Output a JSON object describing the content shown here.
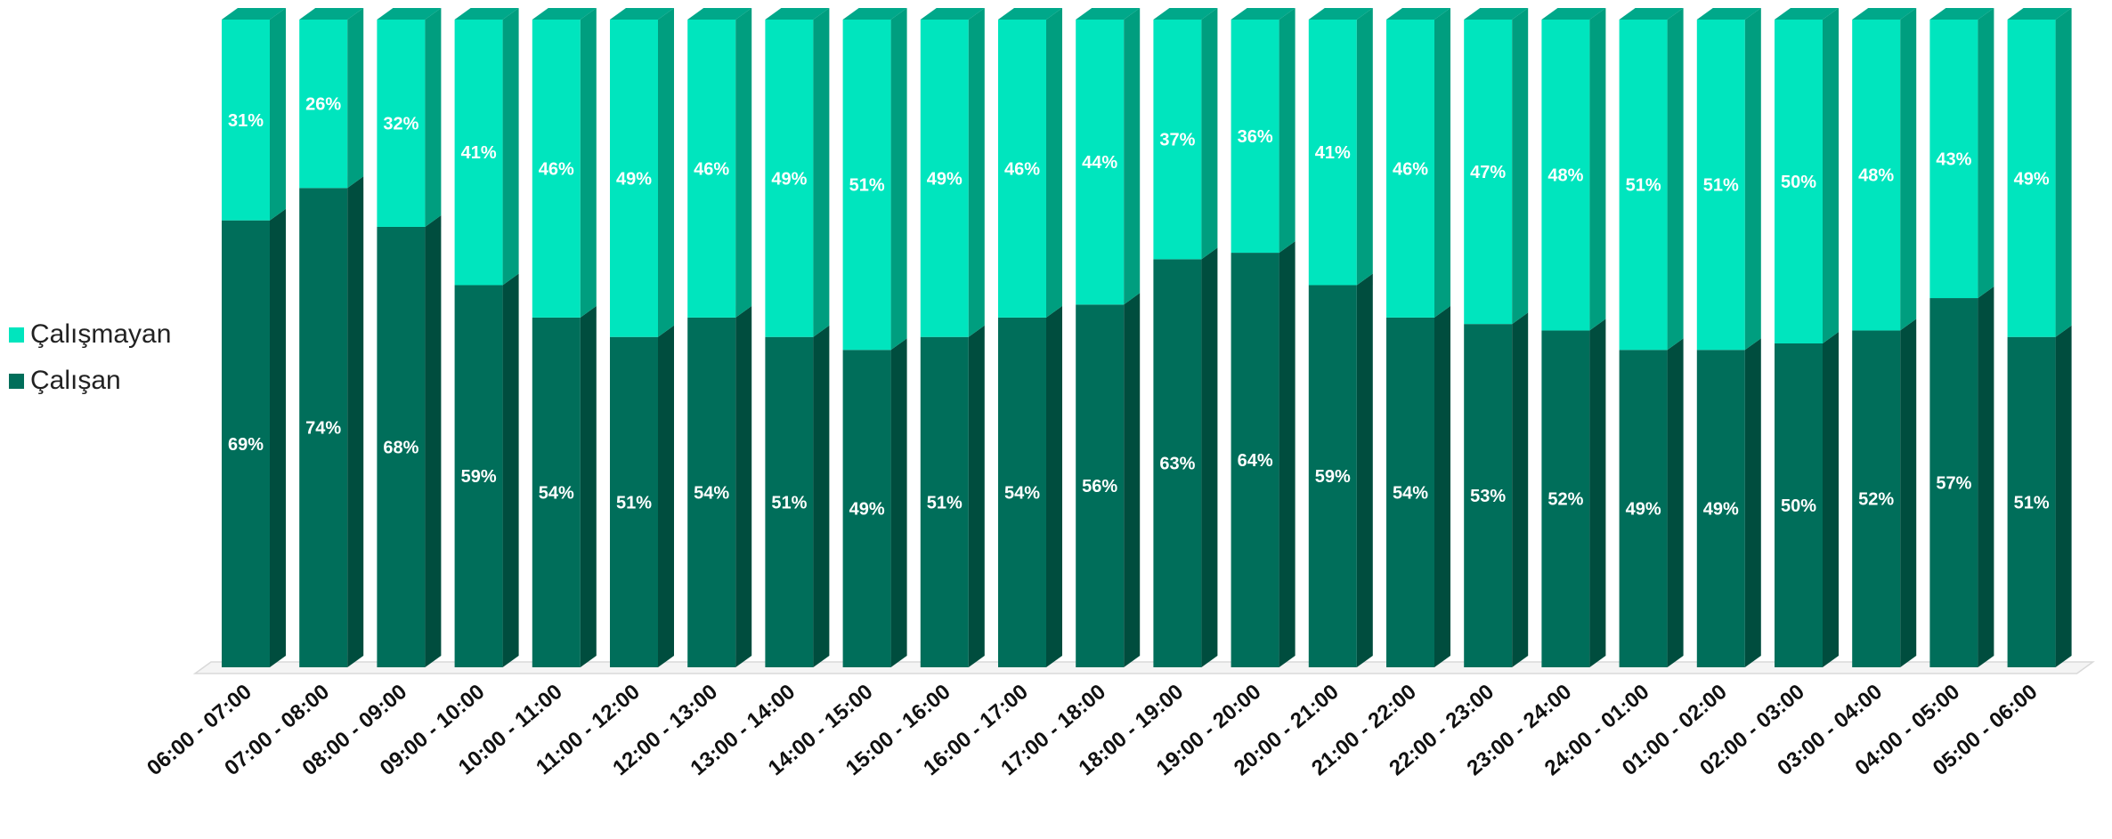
{
  "chart_data": {
    "type": "bar",
    "stacked": true,
    "percent": true,
    "three_d": true,
    "title": "",
    "xlabel": "",
    "ylabel": "",
    "ylim": [
      0,
      100
    ],
    "grid": false,
    "legend_position": "left",
    "categories": [
      "06:00 - 07:00",
      "07:00 - 08:00",
      "08:00 - 09:00",
      "09:00 - 10:00",
      "10:00 - 11:00",
      "11:00 - 12:00",
      "12:00 - 13:00",
      "13:00 - 14:00",
      "14:00 - 15:00",
      "15:00 - 16:00",
      "16:00 - 17:00",
      "17:00 - 18:00",
      "18:00 - 19:00",
      "19:00 - 20:00",
      "20:00 - 21:00",
      "21:00 - 22:00",
      "22:00 - 23:00",
      "23:00 - 24:00",
      "24:00 - 01:00",
      "01:00 - 02:00",
      "02:00 - 03:00",
      "03:00 - 04:00",
      "04:00 - 05:00",
      "05:00 - 06:00"
    ],
    "series": [
      {
        "name": "Çalışan",
        "color": "#006e5a",
        "side_color": "#004d3e",
        "top_color": "#008a70",
        "values": [
          69,
          74,
          68,
          59,
          54,
          51,
          54,
          51,
          49,
          51,
          54,
          56,
          63,
          64,
          59,
          54,
          53,
          52,
          49,
          49,
          50,
          52,
          57,
          51
        ],
        "labels": [
          "69%",
          "74%",
          "68%",
          "59%",
          "54%",
          "51%",
          "54%",
          "51%",
          "49%",
          "51%",
          "54%",
          "56%",
          "63%",
          "64%",
          "59%",
          "54%",
          "53%",
          "52%",
          "49%",
          "49%",
          "50%",
          "52%",
          "57%",
          "51%"
        ]
      },
      {
        "name": "Çalışmayan",
        "color": "#00e5be",
        "side_color": "#009e7f",
        "top_color": "#00a88a",
        "values": [
          31,
          26,
          32,
          41,
          46,
          49,
          46,
          49,
          51,
          49,
          46,
          44,
          37,
          36,
          41,
          46,
          47,
          48,
          51,
          51,
          50,
          48,
          43,
          49
        ],
        "labels": [
          "31%",
          "26%",
          "32%",
          "41%",
          "46%",
          "49%",
          "46%",
          "49%",
          "51%",
          "49%",
          "46%",
          "44%",
          "37%",
          "36%",
          "41%",
          "46%",
          "47%",
          "48%",
          "51%",
          "51%",
          "50%",
          "48%",
          "43%",
          "49%"
        ]
      }
    ]
  },
  "legend": {
    "items": [
      {
        "label": "Çalışmayan",
        "color": "#00e5be"
      },
      {
        "label": "Çalışan",
        "color": "#006e5a"
      }
    ]
  }
}
